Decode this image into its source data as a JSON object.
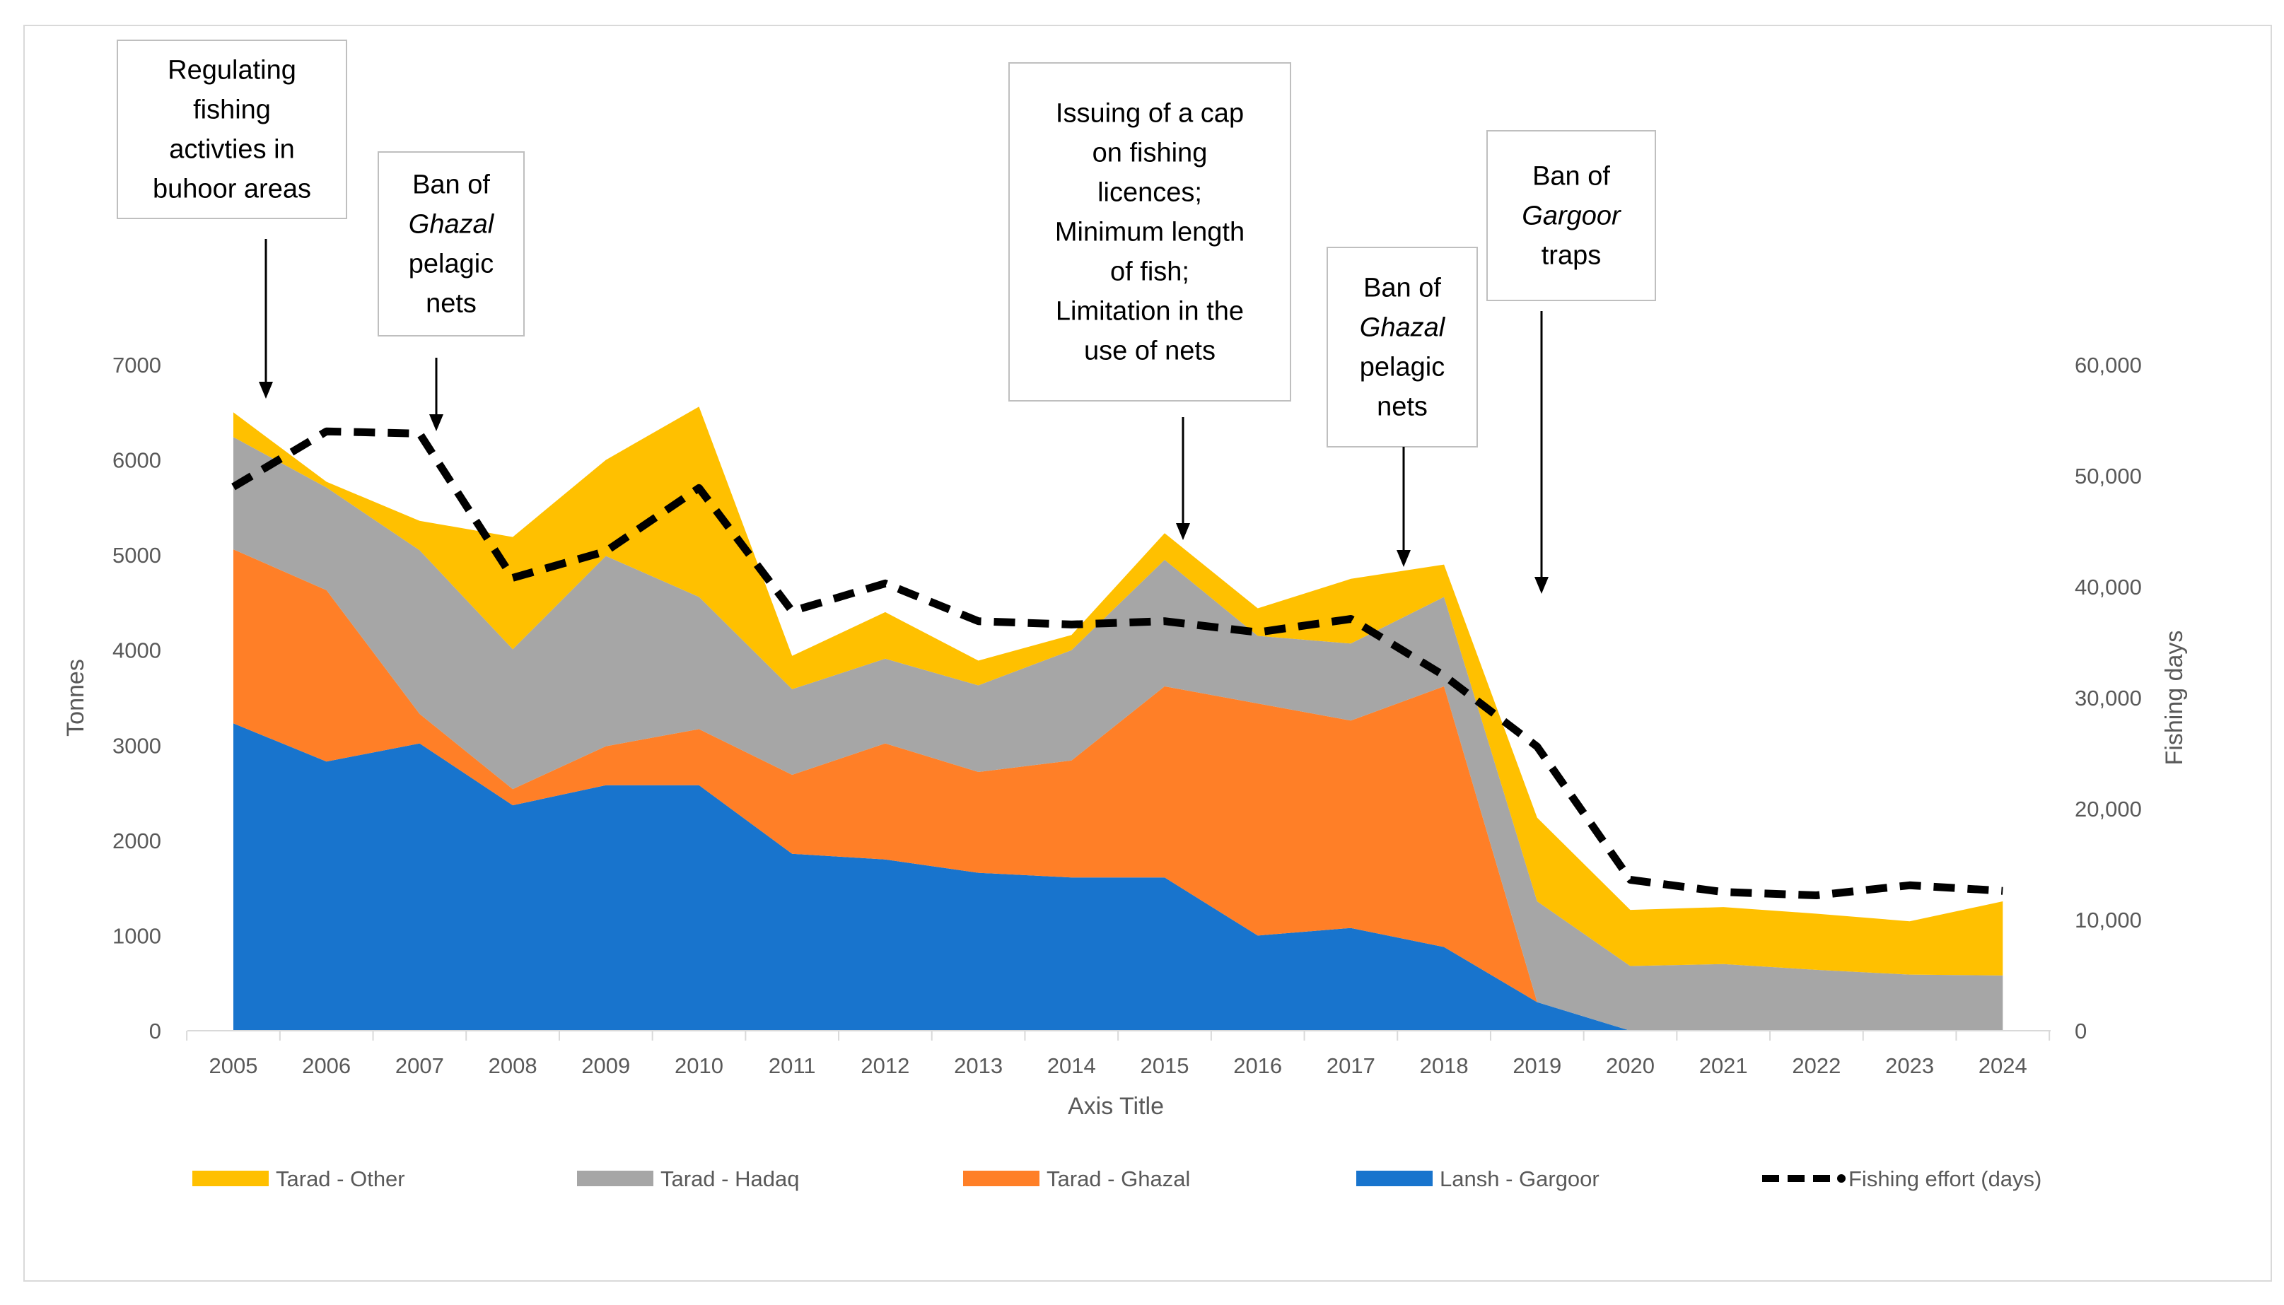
{
  "chart_data": {
    "type": "area",
    "stacked": true,
    "categories": [
      "2005",
      "2006",
      "2007",
      "2008",
      "2009",
      "2010",
      "2011",
      "2012",
      "2013",
      "2014",
      "2015",
      "2016",
      "2017",
      "2018",
      "2019",
      "2020",
      "2021",
      "2022",
      "2023",
      "2024"
    ],
    "series": [
      {
        "name": "Lansh - Gargoor",
        "color": "#1874CD",
        "values": [
          3230,
          2830,
          3020,
          2370,
          2580,
          2580,
          1860,
          1800,
          1660,
          1610,
          1610,
          1000,
          1080,
          880,
          300,
          0,
          0,
          0,
          0,
          0
        ]
      },
      {
        "name": "Tarad - Ghazal",
        "color": "#FF7F27",
        "values": [
          1830,
          1800,
          310,
          170,
          410,
          590,
          830,
          1220,
          1060,
          1230,
          2010,
          2440,
          2180,
          2740,
          0,
          0,
          0,
          0,
          0,
          0
        ]
      },
      {
        "name": "Tarad - Hadaq",
        "color": "#A6A6A6",
        "values": [
          1180,
          1080,
          1720,
          1470,
          2000,
          1390,
          900,
          890,
          910,
          1160,
          1330,
          710,
          810,
          940,
          1060,
          680,
          700,
          640,
          590,
          580
        ]
      },
      {
        "name": "Tarad - Other",
        "color": "#FFC000",
        "values": [
          260,
          60,
          310,
          1180,
          1010,
          2000,
          350,
          490,
          260,
          160,
          280,
          290,
          680,
          340,
          880,
          590,
          600,
          590,
          560,
          780
        ]
      }
    ],
    "line": {
      "name": "Fishing effort (days)",
      "color": "#000000",
      "values": [
        49000,
        54000,
        53800,
        40800,
        43200,
        48900,
        37800,
        40300,
        36900,
        36600,
        36900,
        35900,
        37100,
        32000,
        25600,
        13600,
        12500,
        12200,
        13100,
        12600
      ]
    },
    "xlabel": "Axis Title",
    "ylabel": "Tonnes",
    "y2label": "Fishing days",
    "ylim": [
      0,
      7000
    ],
    "y2lim": [
      0,
      60000
    ],
    "yticks": [
      "0",
      "1000",
      "2000",
      "3000",
      "4000",
      "5000",
      "6000",
      "7000"
    ],
    "y2ticks": [
      "0",
      "10,000",
      "20,000",
      "30,000",
      "40,000",
      "50,000",
      "60,000"
    ],
    "legend_position": "bottom",
    "legend": [
      "Tarad - Other",
      "Tarad - Hadaq",
      "Tarad - Ghazal",
      "Lansh - Gargoor",
      "Fishing effort (days)"
    ],
    "annotations": [
      {
        "lines": [
          [
            "Regulating"
          ],
          [
            "fishing"
          ],
          [
            "activties in"
          ],
          [
            "buhoor areas"
          ]
        ],
        "target": "2005"
      },
      {
        "lines": [
          [
            "Ban of "
          ],
          [
            "Ghazal"
          ],
          [
            "pelagic"
          ],
          [
            "nets"
          ]
        ],
        "italic_line": 1,
        "target": "2007"
      },
      {
        "lines": [
          [
            "Issuing of a cap"
          ],
          [
            "on fishing"
          ],
          [
            "licences;"
          ],
          [
            "Minimum length"
          ],
          [
            "of fish;"
          ],
          [
            "Limitation in the"
          ],
          [
            "use of  nets"
          ]
        ],
        "target": "2015"
      },
      {
        "lines": [
          [
            "Ban of "
          ],
          [
            "Ghazal"
          ],
          [
            "pelagic"
          ],
          [
            "nets"
          ]
        ],
        "italic_line": 1,
        "target": "2017"
      },
      {
        "lines": [
          [
            "Ban of "
          ],
          [
            "Gargoor"
          ],
          [
            "traps"
          ]
        ],
        "italic_line": 1,
        "target": "2019"
      }
    ]
  }
}
